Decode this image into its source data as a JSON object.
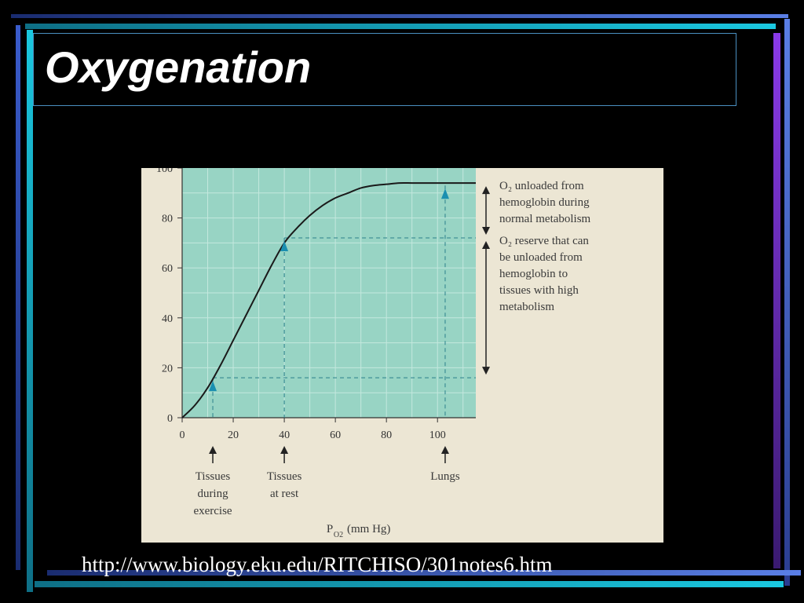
{
  "slide": {
    "title": "Oxygenation",
    "source_url": "http://www.biology.eku.edu/RITCHISO/301notes6.htm"
  },
  "colors": {
    "background": "#000000",
    "plot_fill": "#98d4c4",
    "figure_bg": "#ece6d4",
    "accent_cyan": "#1ac8e0",
    "accent_blue": "#5a7fe6",
    "accent_purple": "#8a3ae8",
    "marker": "#1a8fb0"
  },
  "chart_data": {
    "type": "line",
    "title": "",
    "xlabel": "P",
    "xlabel_subscript": "O2",
    "xlabel_units": "(mm Hg)",
    "ylabel": "",
    "xlim": [
      0,
      115
    ],
    "ylim": [
      0,
      100
    ],
    "x_ticks": [
      0,
      20,
      40,
      60,
      80,
      100
    ],
    "y_ticks": [
      0,
      20,
      40,
      60,
      80,
      100
    ],
    "grid": true,
    "series": [
      {
        "x": [
          0,
          5,
          10,
          15,
          20,
          25,
          30,
          35,
          40,
          45,
          50,
          55,
          60,
          65,
          70,
          75,
          80,
          85,
          90,
          95,
          100,
          105,
          110,
          115
        ],
        "values": [
          0,
          5,
          12,
          21,
          31,
          41,
          51,
          61,
          70,
          76,
          81,
          85,
          88,
          90,
          92,
          93,
          93.5,
          94,
          94,
          94,
          94,
          94,
          94,
          94
        ]
      }
    ],
    "reference_points": [
      {
        "x": 12,
        "y": 16,
        "label_lines": [
          "Tissues",
          "during",
          "exercise"
        ]
      },
      {
        "x": 40,
        "y": 72,
        "label_lines": [
          "Tissues",
          "at rest"
        ]
      },
      {
        "x": 103,
        "y": 93,
        "label_lines": [
          "Lungs"
        ]
      }
    ],
    "annotations": [
      {
        "lines": [
          "O₂ unloaded from",
          "hemoglobin during",
          "normal metabolism"
        ],
        "from_y": 94,
        "to_y": 72
      },
      {
        "lines": [
          "O₂ reserve that can",
          "be unloaded from",
          "hemoglobin to",
          "tissues with high",
          "metabolism"
        ],
        "from_y": 72,
        "to_y": 16
      }
    ]
  }
}
